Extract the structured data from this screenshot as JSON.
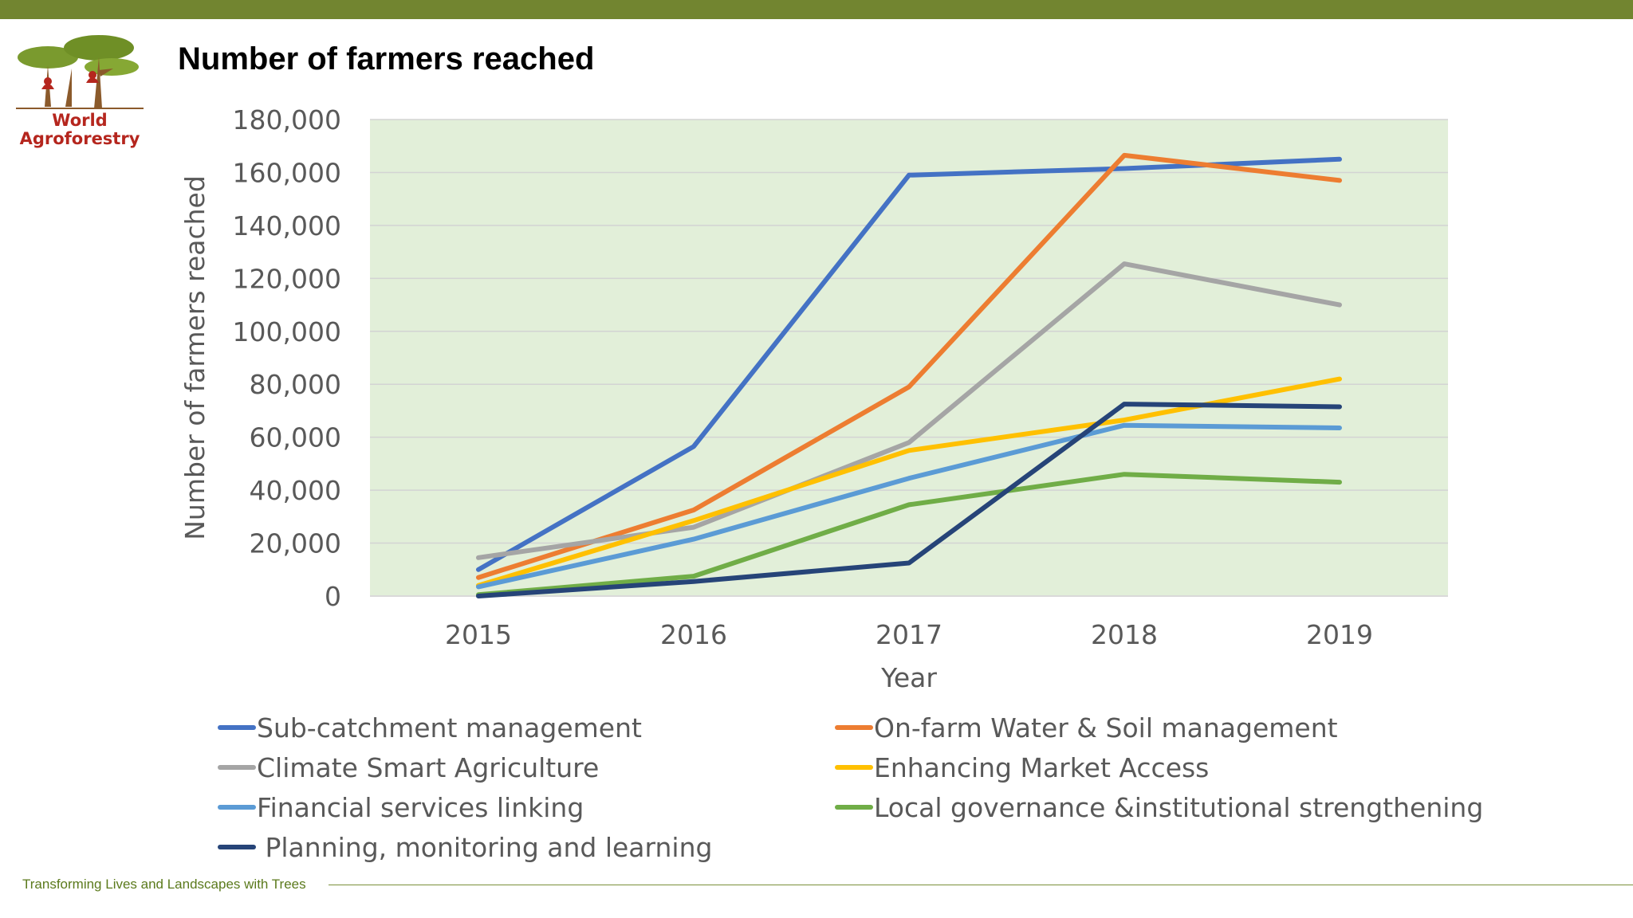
{
  "slide": {
    "title": "Number of farmers reached",
    "logo_line1": "World",
    "logo_line2": "Agroforestry",
    "footer": "Transforming Lives and Landscapes with Trees"
  },
  "colors": {
    "top_bar": "#728530",
    "plot_background": "#e2efd9",
    "logo_text": "#b5261e"
  },
  "chart_data": {
    "type": "line",
    "title": "",
    "xlabel": "Year",
    "ylabel": "Number of farmers reached",
    "x": [
      "2015",
      "2016",
      "2017",
      "2018",
      "2019"
    ],
    "ylim": [
      0,
      180000
    ],
    "yticks": [
      0,
      20000,
      40000,
      60000,
      80000,
      100000,
      120000,
      140000,
      160000,
      180000
    ],
    "ytick_labels": [
      "0",
      "20,000",
      "40,000",
      "60,000",
      "80,000",
      "100,000",
      "120,000",
      "140,000",
      "160,000",
      "180,000"
    ],
    "grid": true,
    "legend_position": "bottom",
    "series": [
      {
        "name": "Sub-catchment management",
        "color": "#4472c4",
        "values": [
          10000,
          56500,
          159000,
          161500,
          165000
        ]
      },
      {
        "name": "On-farm Water & Soil management",
        "color": "#ed7d31",
        "values": [
          7000,
          32500,
          79000,
          166500,
          157000
        ]
      },
      {
        "name": "Climate Smart Agriculture",
        "color": "#a5a5a5",
        "values": [
          14500,
          26000,
          58000,
          125500,
          110000
        ]
      },
      {
        "name": "Enhancing Market Access",
        "color": "#ffc000",
        "values": [
          4000,
          28500,
          55000,
          66500,
          82000
        ]
      },
      {
        "name": "Financial services linking",
        "color": "#5b9bd5",
        "values": [
          3500,
          21500,
          44500,
          64500,
          63500
        ]
      },
      {
        "name": "Local governance &institutional strengthening",
        "color": "#70ad47",
        "values": [
          500,
          7500,
          34500,
          46000,
          43000
        ]
      },
      {
        "name": " Planning, monitoring and learning",
        "color": "#264478",
        "values": [
          0,
          5500,
          12500,
          72500,
          71500
        ]
      }
    ]
  }
}
